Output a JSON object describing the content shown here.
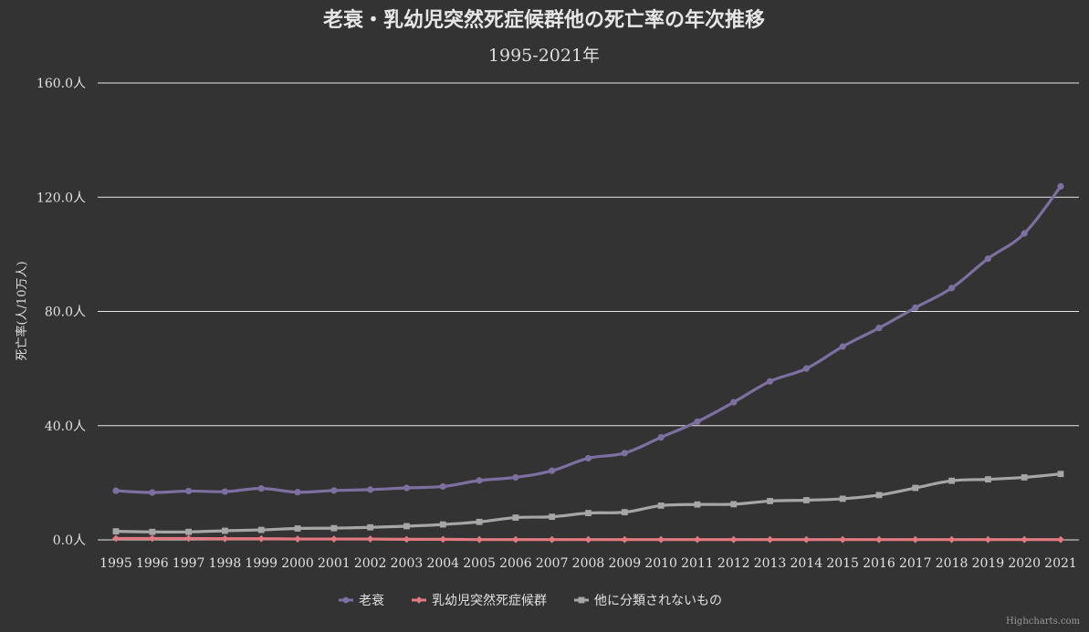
{
  "chart_data": {
    "type": "line",
    "title": "老衰・乳幼児突然死症候群他の死亡率の年次推移",
    "subtitle": "1995-2021年",
    "ylabel": "死亡率(人/10万人)",
    "xlabel": "",
    "ylim": [
      0,
      160
    ],
    "y_ticks": [
      "0.0人",
      "40.0人",
      "80.0人",
      "120.0人",
      "160.0人"
    ],
    "y_tick_values": [
      0,
      40,
      80,
      120,
      160
    ],
    "grid": true,
    "legend_position": "bottom",
    "categories": [
      "1995",
      "1996",
      "1997",
      "1998",
      "1999",
      "2000",
      "2001",
      "2002",
      "2003",
      "2004",
      "2005",
      "2006",
      "2007",
      "2008",
      "2009",
      "2010",
      "2011",
      "2012",
      "2013",
      "2014",
      "2015",
      "2016",
      "2017",
      "2018",
      "2019",
      "2020",
      "2021"
    ],
    "series": [
      {
        "name": "老衰",
        "color": "#7d6fa0",
        "marker": "circle",
        "values": [
          17.2,
          16.6,
          17.1,
          16.9,
          18.0,
          16.7,
          17.3,
          17.6,
          18.2,
          18.7,
          20.8,
          21.9,
          24.2,
          28.6,
          30.4,
          35.9,
          41.4,
          48.2,
          55.5,
          60.0,
          67.7,
          74.2,
          81.3,
          88.2,
          98.5,
          107.3,
          123.8
        ]
      },
      {
        "name": "乳幼児突然死症候群",
        "color": "#e07a80",
        "marker": "diamond",
        "values": [
          0.5,
          0.5,
          0.5,
          0.4,
          0.4,
          0.3,
          0.3,
          0.3,
          0.2,
          0.2,
          0.1,
          0.1,
          0.1,
          0.1,
          0.1,
          0.1,
          0.1,
          0.1,
          0.1,
          0.1,
          0.1,
          0.1,
          0.1,
          0.1,
          0.1,
          0.1,
          0.1
        ]
      },
      {
        "name": "他に分類されないもの",
        "color": "#a6a6a6",
        "marker": "square",
        "values": [
          3.0,
          2.8,
          2.8,
          3.2,
          3.5,
          4.0,
          4.1,
          4.4,
          4.8,
          5.4,
          6.3,
          7.8,
          8.1,
          9.4,
          9.7,
          12.0,
          12.4,
          12.5,
          13.6,
          13.9,
          14.4,
          15.7,
          18.2,
          20.7,
          21.2,
          21.9,
          23.1
        ]
      }
    ],
    "credits": "Highcharts.com"
  }
}
